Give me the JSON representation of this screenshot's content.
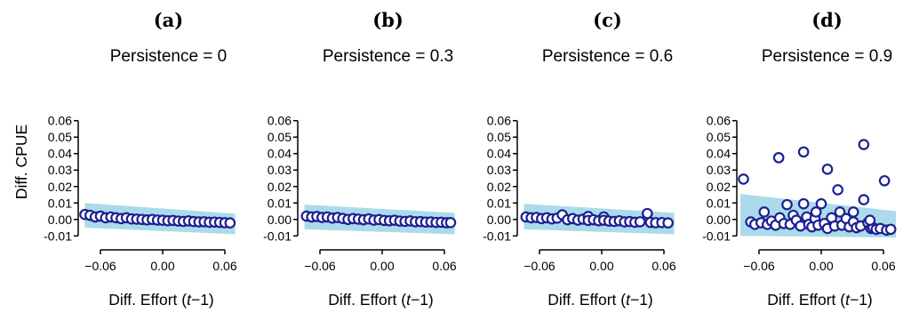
{
  "y_axis_label": "Diff. CPUE",
  "chart_data": [
    {
      "type": "scatter",
      "panel_label": "(a)",
      "title": "Persistence = 0",
      "xlabel_prefix": "Diff. Effort (",
      "xlabel_italic": "t",
      "xlabel_suffix": "−1)",
      "xlim": [
        -0.078,
        0.072
      ],
      "ylim": [
        -0.012,
        0.062
      ],
      "xticks": [
        -0.06,
        0.0,
        0.06
      ],
      "xtick_labels": [
        "−0.06",
        "0.00",
        "0.06"
      ],
      "yticks": [
        -0.01,
        0.0,
        0.01,
        0.02,
        0.03,
        0.04,
        0.05,
        0.06
      ],
      "ytick_labels": [
        "-0.01",
        "0.00",
        "0.01",
        "0.02",
        "0.03",
        "0.04",
        "0.05",
        "0.06"
      ],
      "band": {
        "x": [
          -0.075,
          0.07
        ],
        "y_upper": [
          0.01,
          0.0035
        ],
        "y_lower": [
          -0.005,
          -0.009
        ]
      },
      "points": [
        {
          "x": -0.075,
          "y": 0.003
        },
        {
          "x": -0.07,
          "y": 0.0025
        },
        {
          "x": -0.065,
          "y": 0.0015
        },
        {
          "x": -0.06,
          "y": 0.002
        },
        {
          "x": -0.055,
          "y": 0.001
        },
        {
          "x": -0.05,
          "y": 0.0015
        },
        {
          "x": -0.045,
          "y": 0.001
        },
        {
          "x": -0.04,
          "y": 0.0005
        },
        {
          "x": -0.035,
          "y": 0.001
        },
        {
          "x": -0.03,
          "y": 0.0003
        },
        {
          "x": -0.025,
          "y": 0.0002
        },
        {
          "x": -0.02,
          "y": 0.0
        },
        {
          "x": -0.015,
          "y": -0.0003
        },
        {
          "x": -0.01,
          "y": 0.0
        },
        {
          "x": -0.005,
          "y": -0.0004
        },
        {
          "x": 0.0,
          "y": -0.0005
        },
        {
          "x": 0.005,
          "y": -0.0008
        },
        {
          "x": 0.01,
          "y": -0.0006
        },
        {
          "x": 0.015,
          "y": -0.001
        },
        {
          "x": 0.02,
          "y": -0.0012
        },
        {
          "x": 0.025,
          "y": -0.0009
        },
        {
          "x": 0.03,
          "y": -0.0013
        },
        {
          "x": 0.035,
          "y": -0.0015
        },
        {
          "x": 0.04,
          "y": -0.0014
        },
        {
          "x": 0.045,
          "y": -0.0017
        },
        {
          "x": 0.05,
          "y": -0.0016
        },
        {
          "x": 0.055,
          "y": -0.0018
        },
        {
          "x": 0.06,
          "y": -0.002
        },
        {
          "x": 0.065,
          "y": -0.0021
        }
      ]
    },
    {
      "type": "scatter",
      "panel_label": "(b)",
      "title": "Persistence = 0.3",
      "xlabel_prefix": "Diff. Effort (",
      "xlabel_italic": "t",
      "xlabel_suffix": "−1)",
      "xlim": [
        -0.078,
        0.072
      ],
      "ylim": [
        -0.012,
        0.062
      ],
      "xticks": [
        -0.06,
        0.0,
        0.06
      ],
      "xtick_labels": [
        "−0.06",
        "0.00",
        "0.06"
      ],
      "yticks": [
        -0.01,
        0.0,
        0.01,
        0.02,
        0.03,
        0.04,
        0.05,
        0.06
      ],
      "ytick_labels": [
        "-0.01",
        "0.00",
        "0.01",
        "0.02",
        "0.03",
        "0.04",
        "0.05",
        "0.06"
      ],
      "band": {
        "x": [
          -0.075,
          0.07
        ],
        "y_upper": [
          0.009,
          0.004
        ],
        "y_lower": [
          -0.006,
          -0.009
        ]
      },
      "points": [
        {
          "x": -0.073,
          "y": 0.002
        },
        {
          "x": -0.068,
          "y": 0.0015
        },
        {
          "x": -0.063,
          "y": 0.0018
        },
        {
          "x": -0.058,
          "y": 0.0012
        },
        {
          "x": -0.053,
          "y": 0.0015
        },
        {
          "x": -0.048,
          "y": 0.0008
        },
        {
          "x": -0.043,
          "y": 0.0012
        },
        {
          "x": -0.038,
          "y": 0.0006
        },
        {
          "x": -0.033,
          "y": 0.0
        },
        {
          "x": -0.028,
          "y": 0.0005
        },
        {
          "x": -0.023,
          "y": 0.0002
        },
        {
          "x": -0.018,
          "y": -0.0002
        },
        {
          "x": -0.013,
          "y": 0.0003
        },
        {
          "x": -0.008,
          "y": -0.0004
        },
        {
          "x": -0.003,
          "y": -0.0001
        },
        {
          "x": 0.002,
          "y": -0.0006
        },
        {
          "x": 0.007,
          "y": -0.0008
        },
        {
          "x": 0.012,
          "y": -0.0005
        },
        {
          "x": 0.017,
          "y": -0.001
        },
        {
          "x": 0.022,
          "y": -0.0012
        },
        {
          "x": 0.027,
          "y": -0.0009
        },
        {
          "x": 0.032,
          "y": -0.0014
        },
        {
          "x": 0.037,
          "y": -0.0013
        },
        {
          "x": 0.042,
          "y": -0.0016
        },
        {
          "x": 0.047,
          "y": -0.0015
        },
        {
          "x": 0.052,
          "y": -0.0018
        },
        {
          "x": 0.057,
          "y": -0.0017
        },
        {
          "x": 0.062,
          "y": -0.002
        },
        {
          "x": 0.066,
          "y": -0.0019
        }
      ]
    },
    {
      "type": "scatter",
      "panel_label": "(c)",
      "title": "Persistence = 0.6",
      "xlabel_prefix": "Diff. Effort (",
      "xlabel_italic": "t",
      "xlabel_suffix": "−1)",
      "xlim": [
        -0.078,
        0.072
      ],
      "ylim": [
        -0.012,
        0.062
      ],
      "xticks": [
        -0.06,
        0.0,
        0.06
      ],
      "xtick_labels": [
        "−0.06",
        "0.00",
        "0.06"
      ],
      "yticks": [
        -0.01,
        0.0,
        0.01,
        0.02,
        0.03,
        0.04,
        0.05,
        0.06
      ],
      "ytick_labels": [
        "-0.01",
        "0.00",
        "0.01",
        "0.02",
        "0.03",
        "0.04",
        "0.05",
        "0.06"
      ],
      "band": {
        "x": [
          -0.075,
          0.07
        ],
        "y_upper": [
          0.0095,
          0.004
        ],
        "y_lower": [
          -0.006,
          -0.009
        ]
      },
      "points": [
        {
          "x": -0.073,
          "y": 0.0015
        },
        {
          "x": -0.068,
          "y": 0.001
        },
        {
          "x": -0.063,
          "y": 0.0012
        },
        {
          "x": -0.058,
          "y": 0.0005
        },
        {
          "x": -0.053,
          "y": 0.001
        },
        {
          "x": -0.048,
          "y": 0.0003
        },
        {
          "x": -0.043,
          "y": 0.0008
        },
        {
          "x": -0.038,
          "y": 0.0028
        },
        {
          "x": -0.033,
          "y": -0.0002
        },
        {
          "x": -0.028,
          "y": 0.0005
        },
        {
          "x": -0.023,
          "y": -0.0004
        },
        {
          "x": -0.018,
          "y": 0.0002
        },
        {
          "x": -0.013,
          "y": 0.0018
        },
        {
          "x": -0.013,
          "y": -0.0006
        },
        {
          "x": -0.008,
          "y": -0.0002
        },
        {
          "x": -0.003,
          "y": -0.0008
        },
        {
          "x": 0.002,
          "y": 0.0015
        },
        {
          "x": 0.002,
          "y": -0.0005
        },
        {
          "x": 0.007,
          "y": -0.001
        },
        {
          "x": 0.012,
          "y": -0.0012
        },
        {
          "x": 0.017,
          "y": -0.0008
        },
        {
          "x": 0.022,
          "y": -0.0015
        },
        {
          "x": 0.027,
          "y": -0.0013
        },
        {
          "x": 0.032,
          "y": -0.0017
        },
        {
          "x": 0.037,
          "y": -0.0014
        },
        {
          "x": 0.044,
          "y": 0.0036
        },
        {
          "x": 0.047,
          "y": -0.0018
        },
        {
          "x": 0.052,
          "y": -0.002
        },
        {
          "x": 0.058,
          "y": -0.0019
        },
        {
          "x": 0.064,
          "y": -0.0021
        }
      ]
    },
    {
      "type": "scatter",
      "panel_label": "(d)",
      "title": "Persistence = 0.9",
      "xlabel_prefix": "Diff. Effort (",
      "xlabel_italic": "t",
      "xlabel_suffix": "−1)",
      "xlim": [
        -0.078,
        0.072
      ],
      "ylim": [
        -0.012,
        0.062
      ],
      "xticks": [
        -0.06,
        0.0,
        0.06
      ],
      "xtick_labels": [
        "−0.06",
        "0.00",
        "0.06"
      ],
      "yticks": [
        -0.01,
        0.0,
        0.01,
        0.02,
        0.03,
        0.04,
        0.05,
        0.06
      ],
      "ytick_labels": [
        "-0.01",
        "0.00",
        "0.01",
        "0.02",
        "0.03",
        "0.04",
        "0.05",
        "0.06"
      ],
      "band": {
        "x": [
          -0.078,
          0.072
        ],
        "y_upper": [
          0.0155,
          0.005
        ],
        "y_lower": [
          -0.01,
          -0.011
        ]
      },
      "points": [
        {
          "x": -0.075,
          "y": 0.0245
        },
        {
          "x": -0.068,
          "y": -0.0015
        },
        {
          "x": -0.064,
          "y": -0.003
        },
        {
          "x": -0.058,
          "y": -0.002
        },
        {
          "x": -0.055,
          "y": 0.0045
        },
        {
          "x": -0.052,
          "y": -0.003
        },
        {
          "x": -0.048,
          "y": -0.001
        },
        {
          "x": -0.044,
          "y": -0.0035
        },
        {
          "x": -0.041,
          "y": 0.0375
        },
        {
          "x": -0.04,
          "y": 0.001
        },
        {
          "x": -0.036,
          "y": -0.0025
        },
        {
          "x": -0.033,
          "y": 0.009
        },
        {
          "x": -0.03,
          "y": -0.003
        },
        {
          "x": -0.027,
          "y": 0.0025
        },
        {
          "x": -0.024,
          "y": -0.0005
        },
        {
          "x": -0.02,
          "y": -0.004
        },
        {
          "x": -0.017,
          "y": 0.041
        },
        {
          "x": -0.017,
          "y": 0.0095
        },
        {
          "x": -0.014,
          "y": 0.0015
        },
        {
          "x": -0.012,
          "y": -0.003
        },
        {
          "x": -0.009,
          "y": -0.0045
        },
        {
          "x": -0.006,
          "y": 0.0005
        },
        {
          "x": -0.003,
          "y": -0.0035
        },
        {
          "x": 0.0,
          "y": 0.0095
        },
        {
          "x": 0.003,
          "y": -0.0025
        },
        {
          "x": 0.006,
          "y": 0.0305
        },
        {
          "x": 0.006,
          "y": -0.0055
        },
        {
          "x": 0.01,
          "y": 0.001
        },
        {
          "x": 0.013,
          "y": -0.004
        },
        {
          "x": 0.016,
          "y": 0.018
        },
        {
          "x": 0.018,
          "y": 0.0045
        },
        {
          "x": 0.02,
          "y": -0.0035
        },
        {
          "x": 0.024,
          "y": 0.0005
        },
        {
          "x": 0.027,
          "y": -0.0045
        },
        {
          "x": 0.031,
          "y": -0.0015
        },
        {
          "x": 0.034,
          "y": -0.005
        },
        {
          "x": 0.038,
          "y": -0.004
        },
        {
          "x": 0.041,
          "y": 0.0455
        },
        {
          "x": 0.041,
          "y": 0.012
        },
        {
          "x": 0.045,
          "y": -0.002
        },
        {
          "x": 0.048,
          "y": -0.0055
        },
        {
          "x": 0.05,
          "y": -0.005
        },
        {
          "x": 0.053,
          "y": -0.006
        },
        {
          "x": 0.057,
          "y": -0.0055
        },
        {
          "x": 0.061,
          "y": 0.0235
        },
        {
          "x": 0.063,
          "y": -0.0065
        },
        {
          "x": 0.067,
          "y": -0.006
        },
        {
          "x": 0.031,
          "y": 0.0045
        },
        {
          "x": -0.005,
          "y": 0.0045
        },
        {
          "x": 0.047,
          "y": -0.0005
        }
      ]
    }
  ],
  "colors": {
    "band": "#abdbea",
    "marker_stroke": "#1c1f93",
    "marker_fill": "#ffffff",
    "axis": "#000000"
  }
}
